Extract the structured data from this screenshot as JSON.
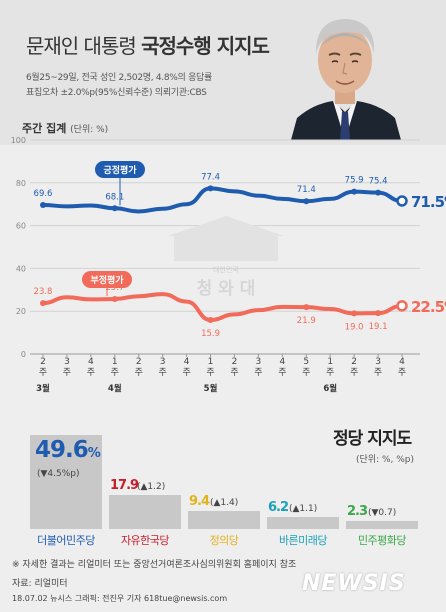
{
  "header": {
    "title_plain": "문재인 대통령",
    "title_bold": "국정수행 지지도",
    "survey_line1": "6월25~29일, 전국 성인 2,502명, 4.8%의 응답률",
    "survey_line2": "표집오차 ±2.0%p(95%신뢰수준) 의뢰기관:CBS"
  },
  "section_label": "주간 집계",
  "section_unit": "(단위: %)",
  "watermark": {
    "text_small": "대한민국",
    "text_large": "청 와 대"
  },
  "chart_data": {
    "type": "line",
    "title": "문재인 대통령 국정수행 지지도",
    "unit": "%",
    "ylim": [
      0,
      100
    ],
    "yticks": [
      0,
      20,
      40,
      60,
      80,
      100
    ],
    "grid": true,
    "categories": [
      "2주",
      "3주",
      "4주",
      "1주",
      "2주",
      "3주",
      "4주",
      "1주",
      "2주",
      "3주",
      "4주",
      "5주",
      "1주",
      "2주",
      "3주",
      "4주"
    ],
    "month_labels": [
      {
        "index": 0,
        "label": "3월"
      },
      {
        "index": 3,
        "label": "4월"
      },
      {
        "index": 7,
        "label": "5월"
      },
      {
        "index": 12,
        "label": "6월"
      }
    ],
    "series": [
      {
        "name": "긍정평가",
        "color": "#1f5cb0",
        "values": [
          69.6,
          69.0,
          69.4,
          68.1,
          66.6,
          67.9,
          70.0,
          77.4,
          76.0,
          74.0,
          72.5,
          71.4,
          72.5,
          75.9,
          75.4,
          71.5
        ],
        "labels": [
          {
            "index": 0,
            "text": "69.6"
          },
          {
            "index": 3,
            "text": "68.1"
          },
          {
            "index": 7,
            "text": "77.4"
          },
          {
            "index": 11,
            "text": "71.4"
          },
          {
            "index": 13,
            "text": "75.9"
          },
          {
            "index": 14,
            "text": "75.4"
          },
          {
            "index": 15,
            "text": "71.5%",
            "highlight": true
          }
        ]
      },
      {
        "name": "부정평가",
        "color": "#f26a5a",
        "values": [
          23.8,
          26.5,
          25.5,
          25.7,
          27.0,
          28.0,
          24.5,
          15.9,
          18.5,
          20.5,
          22.0,
          21.9,
          21.0,
          19.0,
          19.1,
          22.5
        ],
        "labels": [
          {
            "index": 0,
            "text": "23.8"
          },
          {
            "index": 3,
            "text": "25.7"
          },
          {
            "index": 7,
            "text": "15.9"
          },
          {
            "index": 11,
            "text": "21.9"
          },
          {
            "index": 13,
            "text": "19.0"
          },
          {
            "index": 14,
            "text": "19.1"
          },
          {
            "index": 15,
            "text": "22.5%",
            "highlight": true
          }
        ]
      }
    ]
  },
  "party_support": {
    "title": "정당 지지도",
    "unit": "(단위: %, %p)",
    "parties": [
      {
        "name": "더불어민주당",
        "value": 49.6,
        "value_text": "49.6",
        "pct": "%",
        "change": "(▼4.5%p)",
        "color": "#1f5cb0"
      },
      {
        "name": "자유한국당",
        "value": 17.9,
        "value_text": "17.9",
        "pct": "",
        "change": "(▲1.2)",
        "color": "#c81e2c"
      },
      {
        "name": "정의당",
        "value": 9.4,
        "value_text": "9.4",
        "pct": "",
        "change": "(▲1.4)",
        "color": "#e3b31c"
      },
      {
        "name": "바른미래당",
        "value": 6.2,
        "value_text": "6.2",
        "pct": "",
        "change": "(▲1.1)",
        "color": "#1aa0b8"
      },
      {
        "name": "민주평화당",
        "value": 2.3,
        "value_text": "2.3",
        "pct": "",
        "change": "(▼0.7)",
        "color": "#3aa84a"
      }
    ]
  },
  "footer": {
    "footnote": "※ 자세한 결과는 리얼미터 또는 중앙선거여론조사심의위원회 홈페이지 참조",
    "source": "자료: 리얼미터",
    "credit": "18.07.02 뉴시스 그래픽: 전진우 기자 618tue@newsis.com",
    "logo": "NEWSIS"
  }
}
